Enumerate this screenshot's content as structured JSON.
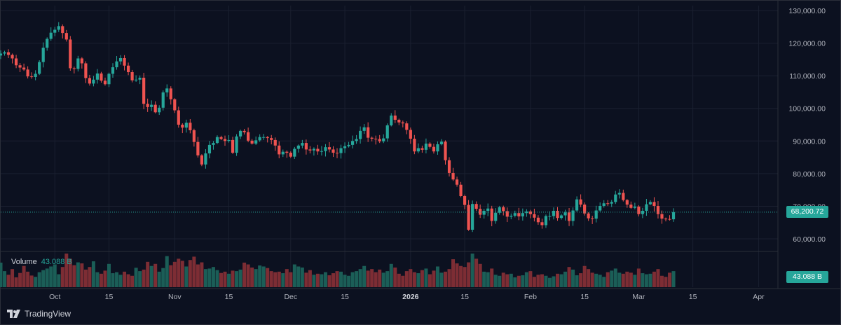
{
  "chart_data": {
    "type": "candlestick",
    "title": "",
    "y_ticks": [
      "130,000.00",
      "120,000.00",
      "110,000.00",
      "100,000.00",
      "90,000.00",
      "80,000.00",
      "70,000.00",
      "60,000.00"
    ],
    "y_tick_values": [
      130000,
      120000,
      110000,
      100000,
      90000,
      80000,
      70000,
      60000
    ],
    "ylim": [
      57000,
      131500
    ],
    "x_ticks": [
      {
        "label": "Oct",
        "day": 0
      },
      {
        "label": "15",
        "day": 14
      },
      {
        "label": "Nov",
        "day": 31
      },
      {
        "label": "15",
        "day": 45
      },
      {
        "label": "Dec",
        "day": 61
      },
      {
        "label": "15",
        "day": 75
      },
      {
        "label": "2026",
        "day": 92,
        "bold": true
      },
      {
        "label": "15",
        "day": 106
      },
      {
        "label": "Feb",
        "day": 123
      },
      {
        "label": "15",
        "day": 137
      },
      {
        "label": "Mar",
        "day": 151
      },
      {
        "label": "15",
        "day": 165
      },
      {
        "label": "Apr",
        "day": 182
      }
    ],
    "days_range": [
      -14,
      187
    ],
    "last_price": 68200.72,
    "last_price_label": "68,200.72",
    "volume_label": "Volume",
    "volume_value": "43.088 B",
    "volume_badge": "43.088 B",
    "closes": [
      116800,
      117200,
      116400,
      115300,
      113200,
      112500,
      111900,
      109800,
      109600,
      110600,
      114200,
      118600,
      121300,
      123200,
      124100,
      125200,
      123100,
      121100,
      112300,
      112100,
      115300,
      113800,
      109300,
      107600,
      108800,
      110700,
      108500,
      107400,
      110600,
      112600,
      114400,
      115400,
      113100,
      111100,
      108600,
      108800,
      109400,
      101400,
      100400,
      101100,
      98800,
      100200,
      104900,
      106100,
      102800,
      99400,
      95000,
      94100,
      95600,
      93300,
      89700,
      85600,
      82800,
      86200,
      88800,
      89400,
      91200,
      90600,
      90000,
      90300,
      86400,
      91400,
      93100,
      92700,
      90100,
      89200,
      90200,
      91200,
      91200,
      90900,
      90300,
      88600,
      85900,
      86700,
      86400,
      85200,
      87600,
      88600,
      89400,
      87400,
      87100,
      87600,
      86800,
      86900,
      88100,
      87400,
      86400,
      86300,
      87800,
      88400,
      88800,
      90000,
      90600,
      93100,
      94200,
      91000,
      90700,
      90600,
      89900,
      90800,
      94800,
      97800,
      96500,
      95700,
      95400,
      93400,
      90700,
      86800,
      87800,
      87300,
      89200,
      88200,
      86800,
      89000,
      89800,
      84100,
      80200,
      78200,
      76600,
      73100,
      70400,
      62800,
      70700,
      69200,
      67400,
      68600,
      69300,
      65500,
      68000,
      69700,
      68500,
      66800,
      67100,
      67900,
      66900,
      67900,
      68400,
      67600,
      66500,
      65100,
      64200,
      67000,
      67000,
      68600,
      66400,
      67200,
      68100,
      65500,
      68700,
      72100,
      70500,
      67800,
      66300,
      66200,
      68700,
      70100,
      70900,
      70800,
      71300,
      73600,
      74100,
      71900,
      70500,
      69500,
      69900,
      67600,
      68600,
      70600,
      71300,
      70100,
      67600,
      66200,
      66100,
      66000,
      68200
    ],
    "volumes": [
      95,
      62,
      48,
      70,
      38,
      55,
      82,
      60,
      45,
      40,
      58,
      66,
      72,
      80,
      88,
      50,
      78,
      130,
      110,
      85,
      96,
      92,
      68,
      78,
      100,
      58,
      52,
      64,
      90,
      54,
      58,
      48,
      60,
      50,
      44,
      75,
      62,
      68,
      98,
      82,
      90,
      60,
      74,
      120,
      85,
      98,
      110,
      102,
      80,
      105,
      118,
      88,
      96,
      70,
      72,
      78,
      66,
      55,
      60,
      52,
      64,
      62,
      68,
      95,
      88,
      76,
      70,
      84,
      80,
      74,
      62,
      58,
      60,
      54,
      70,
      58,
      88,
      80,
      76,
      56,
      66,
      48,
      52,
      50,
      58,
      46,
      54,
      62,
      60,
      48,
      44,
      58,
      62,
      70,
      82,
      64,
      70,
      58,
      68,
      56,
      62,
      90,
      76,
      52,
      44,
      62,
      70,
      58,
      54,
      66,
      72,
      50,
      64,
      80,
      56,
      60,
      70,
      108,
      92,
      82,
      78,
      96,
      130,
      110,
      90,
      60,
      58,
      72,
      48,
      44,
      56,
      50,
      52,
      38,
      44,
      46,
      58,
      62,
      40,
      48,
      50,
      44,
      36,
      42,
      52,
      50,
      60,
      78,
      68,
      46,
      54,
      82,
      70,
      56,
      52,
      48,
      40,
      58,
      64,
      72,
      56,
      52,
      60,
      56,
      48,
      72,
      54,
      50,
      52,
      60,
      70,
      44,
      40,
      56,
      62,
      48,
      52,
      58,
      66
    ]
  },
  "brand": {
    "name": "TradingView"
  },
  "colors": {
    "up": "#26a69a",
    "down": "#ef5350",
    "up_vol": "#1b5e57",
    "down_vol": "#7d2d34",
    "grid": "#1a2030",
    "bg": "#0c1120"
  }
}
